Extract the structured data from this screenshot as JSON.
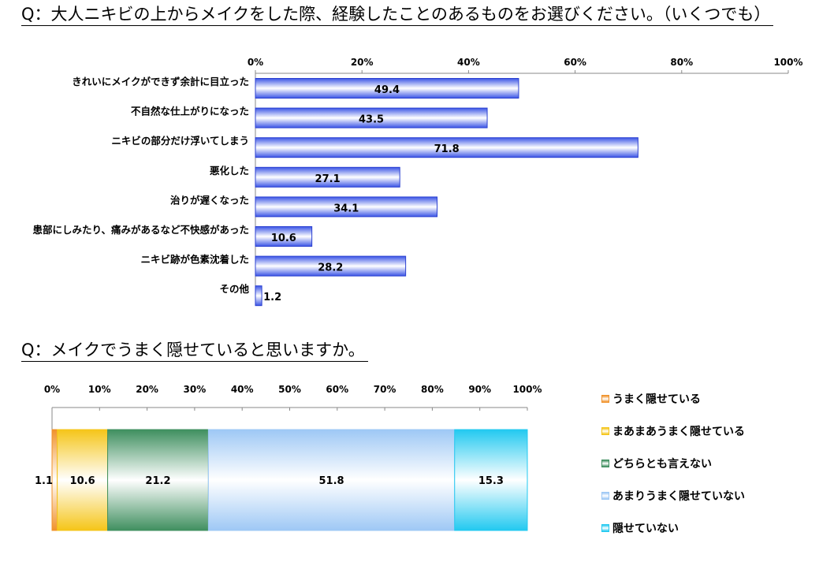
{
  "charts": {
    "q1": {
      "title": "Q：大人ニキビの上からメイクをした際、経験したことのあるものをお選びください。（いくつでも）"
    },
    "q2": {
      "title": "Q：メイクでうまく隠せていると思いますか。"
    }
  },
  "chart_data": [
    {
      "type": "bar",
      "orientation": "horizontal",
      "title": "Q：大人ニキビの上からメイクをした際、経験したことのあるものをお選びください。（いくつでも）",
      "categories": [
        "きれいにメイクができず余計に目立った",
        "不自然な仕上がりになった",
        "ニキビの部分だけ浮いてしまう",
        "悪化した",
        "治りが遅くなった",
        "患部にしみたり、痛みがあるなど不快感があった",
        "ニキビ跡が色素沈着した",
        "その他"
      ],
      "values": [
        49.4,
        43.5,
        71.8,
        27.1,
        34.1,
        10.6,
        28.2,
        1.2
      ],
      "value_labels": [
        "49.4",
        "43.5",
        "71.8",
        "27.1",
        "34.1",
        "10.6",
        "28.2",
        "1.2"
      ],
      "xlim": [
        0,
        100
      ],
      "ticks": [
        "0%",
        "20%",
        "40%",
        "60%",
        "80%",
        "100%"
      ],
      "axis_position": "top",
      "bar_color": "#3b55e6",
      "grid": false,
      "legend": "none"
    },
    {
      "type": "bar",
      "orientation": "horizontal",
      "stacked": true,
      "title": "Q：メイクでうまく隠せていると思いますか。",
      "series": [
        {
          "name": "うまく隠せている",
          "value": 1.1,
          "label": "1.1",
          "color": "#f0922b"
        },
        {
          "name": "まあまあうまく隠せている",
          "value": 10.6,
          "label": "10.6",
          "color": "#f5c518"
        },
        {
          "name": "どちらとも言えない",
          "value": 21.2,
          "label": "21.2",
          "color": "#3f8f5f"
        },
        {
          "name": "あまりうまく隠せていない",
          "value": 51.8,
          "label": "51.8",
          "color": "#9ec8f5"
        },
        {
          "name": "隠せていない",
          "value": 15.3,
          "label": "15.3",
          "color": "#22c9f0"
        }
      ],
      "xlim": [
        0,
        100
      ],
      "ticks": [
        "0%",
        "10%",
        "20%",
        "30%",
        "40%",
        "50%",
        "60%",
        "70%",
        "80%",
        "90%",
        "100%"
      ],
      "axis_position": "top",
      "grid": false,
      "legend": "right"
    }
  ]
}
